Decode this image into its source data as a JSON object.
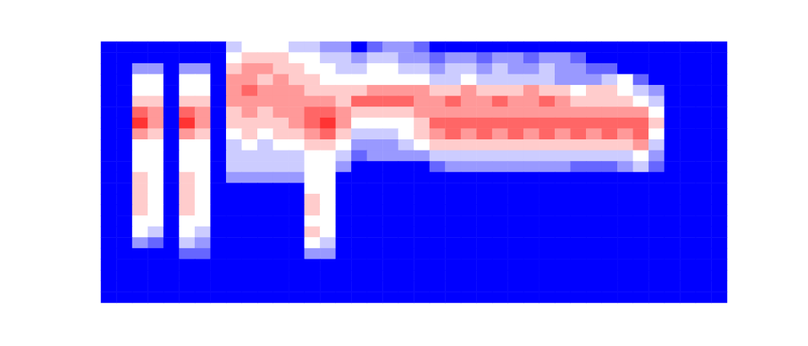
{
  "chart_data": {
    "type": "heatmap",
    "tick_labels": false,
    "color_range": [
      0,
      10
    ],
    "cells": [
      [
        0,
        0,
        0,
        0,
        0,
        0,
        0,
        0,
        4,
        5,
        5,
        5,
        4,
        4,
        3,
        3,
        0,
        2,
        3,
        3,
        2,
        0,
        0,
        0,
        0,
        0,
        0,
        0,
        0,
        0,
        0,
        0,
        0,
        0,
        0,
        0,
        0,
        0,
        0,
        0
      ],
      [
        0,
        0,
        0,
        0,
        0,
        0,
        0,
        0,
        5,
        6,
        6,
        6,
        5,
        5,
        4,
        4,
        3,
        4,
        4,
        3,
        3,
        2,
        3,
        3,
        2,
        3,
        3,
        2,
        3,
        3,
        2,
        0,
        0,
        0,
        0,
        0,
        0,
        0,
        0,
        0
      ],
      [
        0,
        0,
        3,
        3,
        0,
        3,
        3,
        0,
        6,
        7,
        7,
        6,
        6,
        5,
        5,
        4,
        4,
        5,
        5,
        4,
        4,
        3,
        4,
        4,
        3,
        4,
        3,
        3,
        4,
        3,
        3,
        2,
        2,
        0,
        0,
        0,
        0,
        0,
        0,
        0
      ],
      [
        0,
        0,
        5,
        5,
        0,
        5,
        5,
        0,
        7,
        7,
        6,
        7,
        6,
        6,
        5,
        5,
        5,
        5,
        5,
        5,
        5,
        4,
        4,
        5,
        4,
        4,
        4,
        4,
        4,
        3,
        3,
        3,
        4,
        5,
        2,
        0,
        0,
        0,
        0,
        0
      ],
      [
        0,
        0,
        5,
        5,
        0,
        5,
        5,
        0,
        7,
        8,
        7,
        7,
        7,
        6,
        6,
        6,
        6,
        7,
        7,
        7,
        7,
        6,
        6,
        7,
        6,
        6,
        6,
        7,
        6,
        6,
        5,
        6,
        6,
        5,
        4,
        3,
        0,
        0,
        0,
        0
      ],
      [
        0,
        0,
        6,
        6,
        0,
        6,
        6,
        0,
        7,
        7,
        7,
        7,
        7,
        7,
        7,
        6,
        8,
        8,
        8,
        8,
        7,
        7,
        8,
        7,
        7,
        8,
        7,
        7,
        8,
        7,
        6,
        6,
        6,
        6,
        5,
        4,
        0,
        0,
        0,
        0
      ],
      [
        0,
        0,
        8,
        7,
        0,
        8,
        7,
        0,
        6,
        7,
        6,
        7,
        7,
        8,
        8,
        7,
        6,
        6,
        6,
        6,
        7,
        7,
        7,
        7,
        7,
        7,
        7,
        7,
        7,
        7,
        7,
        7,
        7,
        7,
        7,
        5,
        0,
        0,
        0,
        0
      ],
      [
        0,
        0,
        9,
        7,
        0,
        9,
        7,
        0,
        6,
        6,
        6,
        6,
        7,
        8,
        9,
        7,
        5,
        5,
        5,
        5,
        6,
        8,
        8,
        8,
        8,
        8,
        8,
        8,
        8,
        8,
        8,
        8,
        8,
        8,
        8,
        6,
        0,
        0,
        0,
        0
      ],
      [
        0,
        0,
        7,
        6,
        0,
        7,
        6,
        0,
        5,
        6,
        5,
        6,
        6,
        7,
        8,
        6,
        4,
        4,
        4,
        5,
        6,
        7,
        8,
        7,
        8,
        7,
        8,
        7,
        8,
        7,
        8,
        7,
        8,
        7,
        8,
        5,
        0,
        0,
        0,
        0
      ],
      [
        0,
        0,
        5,
        5,
        0,
        5,
        5,
        0,
        4,
        5,
        4,
        5,
        5,
        6,
        6,
        5,
        3,
        3,
        3,
        4,
        5,
        6,
        6,
        6,
        6,
        6,
        6,
        6,
        6,
        6,
        6,
        6,
        6,
        6,
        7,
        4,
        0,
        0,
        0,
        0
      ],
      [
        0,
        0,
        5,
        5,
        0,
        5,
        5,
        0,
        4,
        4,
        4,
        4,
        4,
        5,
        5,
        4,
        2,
        3,
        3,
        3,
        3,
        4,
        4,
        4,
        4,
        4,
        4,
        4,
        4,
        4,
        4,
        4,
        4,
        4,
        5,
        3,
        0,
        0,
        0,
        0
      ],
      [
        0,
        0,
        5,
        5,
        0,
        5,
        5,
        0,
        4,
        4,
        4,
        4,
        4,
        5,
        5,
        3,
        0,
        0,
        0,
        0,
        0,
        2,
        3,
        3,
        3,
        3,
        3,
        3,
        3,
        3,
        2,
        2,
        2,
        3,
        4,
        2,
        0,
        0,
        0,
        0
      ],
      [
        0,
        0,
        6,
        5,
        0,
        6,
        5,
        0,
        3,
        3,
        3,
        3,
        3,
        5,
        5,
        0,
        0,
        0,
        0,
        0,
        0,
        0,
        0,
        0,
        0,
        0,
        0,
        0,
        0,
        0,
        0,
        0,
        0,
        0,
        0,
        0,
        0,
        0,
        0,
        0
      ],
      [
        0,
        0,
        6,
        5,
        0,
        6,
        5,
        0,
        0,
        0,
        0,
        0,
        0,
        5,
        5,
        0,
        0,
        0,
        0,
        0,
        0,
        0,
        0,
        0,
        0,
        0,
        0,
        0,
        0,
        0,
        0,
        0,
        0,
        0,
        0,
        0,
        0,
        0,
        0,
        0
      ],
      [
        0,
        0,
        6,
        5,
        0,
        6,
        5,
        0,
        0,
        0,
        0,
        0,
        0,
        6,
        5,
        0,
        0,
        0,
        0,
        0,
        0,
        0,
        0,
        0,
        0,
        0,
        0,
        0,
        0,
        0,
        0,
        0,
        0,
        0,
        0,
        0,
        0,
        0,
        0,
        0
      ],
      [
        0,
        0,
        6,
        5,
        0,
        6,
        5,
        0,
        0,
        0,
        0,
        0,
        0,
        6,
        5,
        0,
        0,
        0,
        0,
        0,
        0,
        0,
        0,
        0,
        0,
        0,
        0,
        0,
        0,
        0,
        0,
        0,
        0,
        0,
        0,
        0,
        0,
        0,
        0,
        0
      ],
      [
        0,
        0,
        5,
        5,
        0,
        5,
        5,
        0,
        0,
        0,
        0,
        0,
        0,
        5,
        5,
        0,
        0,
        0,
        0,
        0,
        0,
        0,
        0,
        0,
        0,
        0,
        0,
        0,
        0,
        0,
        0,
        0,
        0,
        0,
        0,
        0,
        0,
        0,
        0,
        0
      ],
      [
        0,
        0,
        5,
        4,
        0,
        5,
        4,
        0,
        0,
        0,
        0,
        0,
        0,
        6,
        5,
        0,
        0,
        0,
        0,
        0,
        0,
        0,
        0,
        0,
        0,
        0,
        0,
        0,
        0,
        0,
        0,
        0,
        0,
        0,
        0,
        0,
        0,
        0,
        0,
        0
      ],
      [
        0,
        0,
        3,
        2,
        0,
        4,
        3,
        0,
        0,
        0,
        0,
        0,
        0,
        5,
        4,
        0,
        0,
        0,
        0,
        0,
        0,
        0,
        0,
        0,
        0,
        0,
        0,
        0,
        0,
        0,
        0,
        0,
        0,
        0,
        0,
        0,
        0,
        0,
        0,
        0
      ],
      [
        0,
        0,
        0,
        0,
        0,
        2,
        2,
        0,
        0,
        0,
        0,
        0,
        0,
        3,
        3,
        0,
        0,
        0,
        0,
        0,
        0,
        0,
        0,
        0,
        0,
        0,
        0,
        0,
        0,
        0,
        0,
        0,
        0,
        0,
        0,
        0,
        0,
        0,
        0,
        0
      ],
      [
        0,
        0,
        0,
        0,
        0,
        0,
        0,
        0,
        0,
        0,
        0,
        0,
        0,
        0,
        0,
        0,
        0,
        0,
        0,
        0,
        0,
        0,
        0,
        0,
        0,
        0,
        0,
        0,
        0,
        0,
        0,
        0,
        0,
        0,
        0,
        0,
        0,
        0,
        0,
        0
      ],
      [
        0,
        0,
        0,
        0,
        0,
        0,
        0,
        0,
        0,
        0,
        0,
        0,
        0,
        0,
        0,
        0,
        0,
        0,
        0,
        0,
        0,
        0,
        0,
        0,
        0,
        0,
        0,
        0,
        0,
        0,
        0,
        0,
        0,
        0,
        0,
        0,
        0,
        0,
        0,
        0
      ],
      [
        0,
        0,
        0,
        0,
        0,
        0,
        0,
        0,
        0,
        0,
        0,
        0,
        0,
        0,
        0,
        0,
        0,
        0,
        0,
        0,
        0,
        0,
        0,
        0,
        0,
        0,
        0,
        0,
        0,
        0,
        0,
        0,
        0,
        0,
        0,
        0,
        0,
        0,
        0,
        0
      ],
      [
        0,
        0,
        0,
        0,
        0,
        0,
        0,
        0,
        0,
        0,
        0,
        0,
        0,
        0,
        0,
        0,
        0,
        0,
        0,
        0,
        0,
        0,
        0,
        0,
        0,
        0,
        0,
        0,
        0,
        0,
        0,
        0,
        0,
        0,
        0,
        0,
        0,
        0,
        0,
        0
      ]
    ]
  }
}
